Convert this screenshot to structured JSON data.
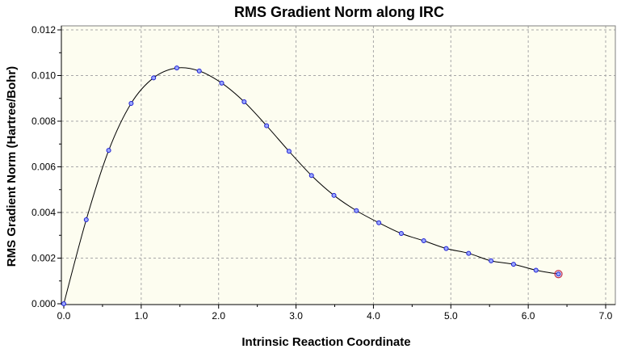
{
  "chart_data": {
    "type": "line",
    "title": "RMS Gradient Norm along IRC",
    "xlabel": "Intrinsic Reaction Coordinate",
    "ylabel": "RMS Gradient Norm (Hartree/Bohr)",
    "xlim": [
      0.0,
      7.0
    ],
    "ylim": [
      0.0,
      0.012
    ],
    "x_ticks": [
      "0.0",
      "1.0",
      "2.0",
      "3.0",
      "4.0",
      "5.0",
      "6.0",
      "7.0"
    ],
    "y_ticks": [
      "0.000",
      "0.002",
      "0.004",
      "0.006",
      "0.008",
      "0.010",
      "0.012"
    ],
    "x_tick_values": [
      0,
      1,
      2,
      3,
      4,
      5,
      6,
      7
    ],
    "y_tick_values": [
      0,
      0.002,
      0.004,
      0.006,
      0.008,
      0.01,
      0.012
    ],
    "grid": true,
    "background_color": "#fdfdf0",
    "line_color": "#000000",
    "marker_color": "#1e1ed2",
    "highlight_color": "#c0284a",
    "series": [
      {
        "x": [
          0.0,
          0.29,
          0.58,
          0.87,
          1.16,
          1.46,
          1.75,
          2.04,
          2.33,
          2.62,
          2.91,
          3.2,
          3.49,
          3.78,
          4.07,
          4.36,
          4.65,
          4.94,
          5.23,
          5.52,
          5.81,
          6.1,
          6.39
        ],
        "y": [
          0.0,
          0.00368,
          0.00672,
          0.00878,
          0.0099,
          0.01033,
          0.0102,
          0.00967,
          0.00885,
          0.0078,
          0.00668,
          0.00562,
          0.00475,
          0.00408,
          0.00355,
          0.00308,
          0.00276,
          0.00242,
          0.00221,
          0.00188,
          0.00173,
          0.00147,
          0.0013
        ]
      }
    ],
    "highlighted_point_index": 22
  }
}
